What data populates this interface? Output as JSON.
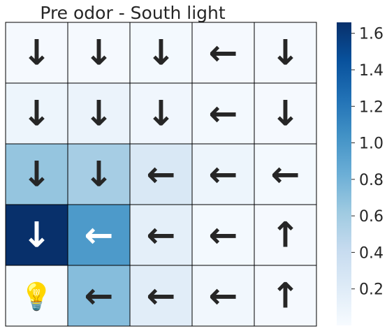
{
  "chart_data": {
    "type": "heatmap",
    "title": "Pre odor - South light",
    "rows": 5,
    "cols": 5,
    "values": [
      [
        0.02,
        0.02,
        0.03,
        0.02,
        0.02
      ],
      [
        0.08,
        0.1,
        0.06,
        0.03,
        0.02
      ],
      [
        0.66,
        0.58,
        0.25,
        0.08,
        0.03
      ],
      [
        1.66,
        0.98,
        0.16,
        0.03,
        0.02
      ],
      [
        0.0,
        0.72,
        0.18,
        0.05,
        0.02
      ]
    ],
    "arrows": [
      [
        "↓",
        "↓",
        "↓",
        "←",
        "↓"
      ],
      [
        "↓",
        "↓",
        "↓",
        "←",
        "↓"
      ],
      [
        "↓",
        "↓",
        "←",
        "←",
        "←"
      ],
      [
        "↓",
        "←",
        "←",
        "←",
        "↑"
      ],
      [
        "",
        "←",
        "←",
        "←",
        "↑"
      ]
    ],
    "special_cell": {
      "row": 4,
      "col": 0,
      "icon": "light-bulb-icon",
      "glyph": "💡"
    },
    "colormap": "Blues",
    "colorbar": {
      "range": [
        0.0,
        1.66
      ],
      "ticks": [
        0.2,
        0.4,
        0.6,
        0.8,
        1.0,
        1.2,
        1.4,
        1.6
      ],
      "tick_labels": [
        "0.2",
        "0.4",
        "0.6",
        "0.8",
        "1.0",
        "1.2",
        "1.4",
        "1.6"
      ]
    },
    "grid": true
  }
}
